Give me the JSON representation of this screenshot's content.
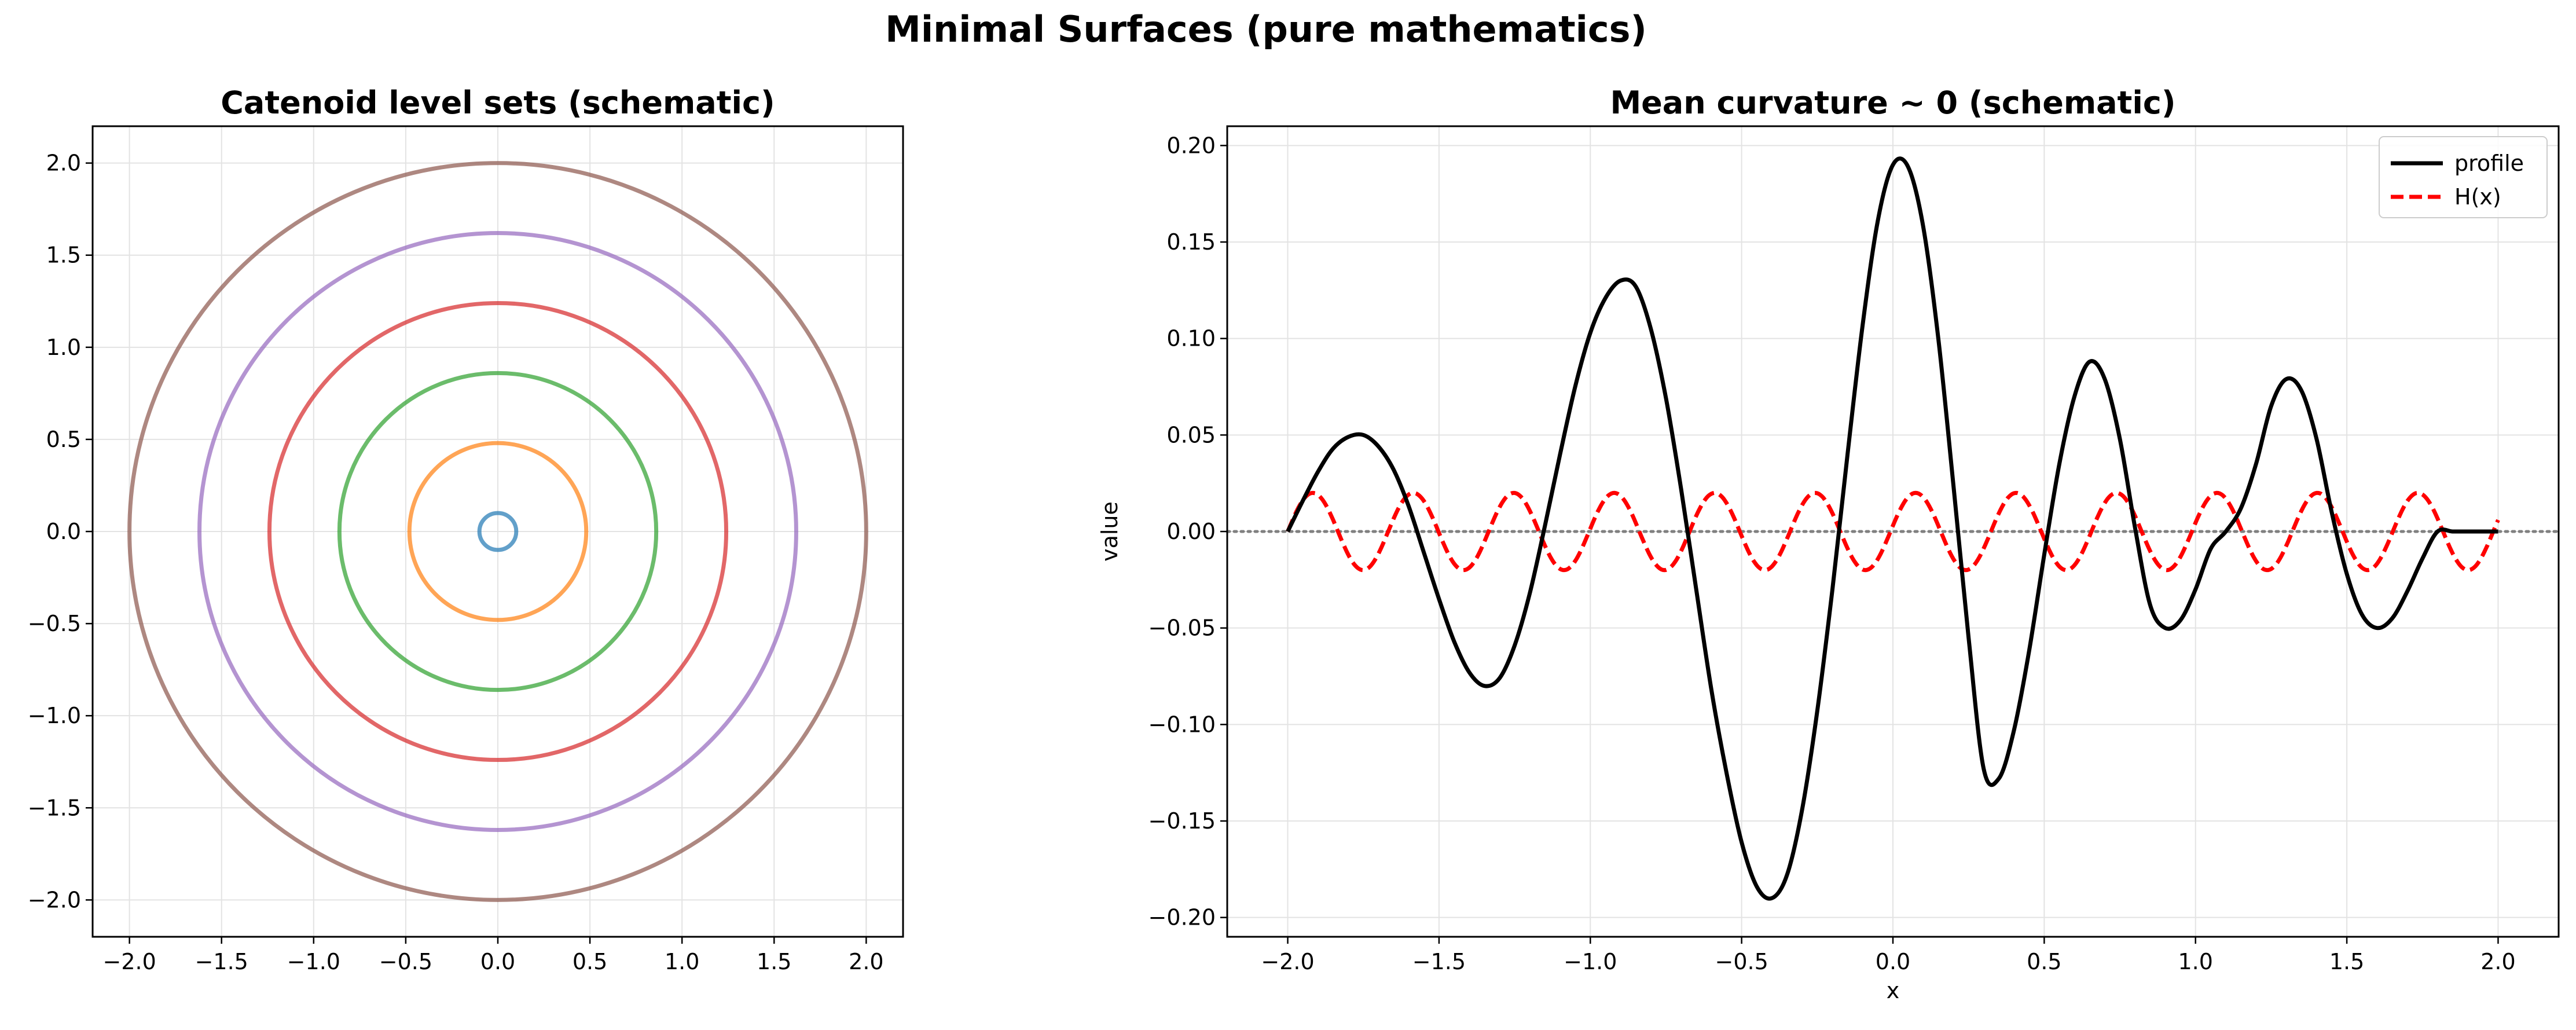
{
  "figure": {
    "title": "Minimal Surfaces (pure mathematics)"
  },
  "chart_data": [
    {
      "type": "line",
      "title": "Catenoid level sets (schematic)",
      "xlabel": "",
      "ylabel": "",
      "xlim": [
        -2.2,
        2.2
      ],
      "ylim": [
        -2.2,
        2.2
      ],
      "xticks": [
        "−2.0",
        "−1.5",
        "−1.0",
        "−0.5",
        "0.0",
        "0.5",
        "1.0",
        "1.5",
        "2.0"
      ],
      "yticks": [
        "−2.0",
        "−1.5",
        "−1.0",
        "−0.5",
        "0.0",
        "0.5",
        "1.0",
        "1.5",
        "2.0"
      ],
      "grid": true,
      "legend": "none",
      "circles": [
        {
          "center": [
            0,
            0
          ],
          "radius": 0.1,
          "color": "#1f77b4"
        },
        {
          "center": [
            0,
            0
          ],
          "radius": 0.48,
          "color": "#ff7f0e"
        },
        {
          "center": [
            0,
            0
          ],
          "radius": 0.86,
          "color": "#2ca02c"
        },
        {
          "center": [
            0,
            0
          ],
          "radius": 1.24,
          "color": "#d62728"
        },
        {
          "center": [
            0,
            0
          ],
          "radius": 1.62,
          "color": "#9467bd"
        },
        {
          "center": [
            0,
            0
          ],
          "radius": 2.0,
          "color": "#8c564b"
        }
      ]
    },
    {
      "type": "line",
      "title": "Mean curvature ~ 0 (schematic)",
      "xlabel": "x",
      "ylabel": "value",
      "xlim": [
        -2.2,
        2.2
      ],
      "ylim": [
        -0.21,
        0.21
      ],
      "xticks": [
        "−2.0",
        "−1.5",
        "−1.0",
        "−0.5",
        "0.0",
        "0.5",
        "1.0",
        "1.5",
        "2.0"
      ],
      "yticks": [
        "−0.20",
        "−0.15",
        "−0.10",
        "−0.05",
        "0.00",
        "0.05",
        "0.10",
        "0.15",
        "0.20"
      ],
      "grid": true,
      "legend": "top-right",
      "series": [
        {
          "name": "profile",
          "color": "#000000",
          "style": "solid",
          "x": [
            -2.0,
            -1.95,
            -1.9,
            -1.85,
            -1.8,
            -1.75,
            -1.7,
            -1.65,
            -1.6,
            -1.55,
            -1.5,
            -1.45,
            -1.4,
            -1.35,
            -1.3,
            -1.25,
            -1.2,
            -1.15,
            -1.1,
            -1.05,
            -1.0,
            -0.95,
            -0.9,
            -0.85,
            -0.8,
            -0.75,
            -0.7,
            -0.65,
            -0.6,
            -0.55,
            -0.5,
            -0.45,
            -0.4,
            -0.35,
            -0.3,
            -0.25,
            -0.2,
            -0.15,
            -0.1,
            -0.05,
            0.0,
            0.05,
            0.1,
            0.15,
            0.2,
            0.25,
            0.3,
            0.35,
            0.4,
            0.45,
            0.5,
            0.55,
            0.6,
            0.65,
            0.7,
            0.75,
            0.8,
            0.85,
            0.9,
            0.95,
            1.0,
            1.05,
            1.1,
            1.15,
            1.2,
            1.25,
            1.3,
            1.35,
            1.4,
            1.45,
            1.5,
            1.55,
            1.6,
            1.65,
            1.7,
            1.75,
            1.8,
            1.85,
            1.9,
            1.95,
            2.0
          ],
          "y": [
            0.0,
            0.016,
            0.031,
            0.043,
            0.049,
            0.05,
            0.044,
            0.032,
            0.013,
            -0.011,
            -0.035,
            -0.057,
            -0.073,
            -0.08,
            -0.076,
            -0.059,
            -0.032,
            0.003,
            0.04,
            0.075,
            0.103,
            0.121,
            0.13,
            0.127,
            0.105,
            0.069,
            0.022,
            -0.03,
            -0.082,
            -0.125,
            -0.161,
            -0.184,
            -0.19,
            -0.178,
            -0.144,
            -0.093,
            -0.03,
            0.04,
            0.107,
            0.161,
            0.19,
            0.189,
            0.158,
            0.1,
            0.024,
            -0.055,
            -0.123,
            -0.128,
            -0.103,
            -0.062,
            -0.012,
            0.035,
            0.07,
            0.088,
            0.079,
            0.048,
            0.002,
            -0.038,
            -0.05,
            -0.046,
            -0.03,
            -0.009,
            0.0,
            0.012,
            0.035,
            0.065,
            0.079,
            0.073,
            0.048,
            0.01,
            -0.022,
            -0.043,
            -0.05,
            -0.045,
            -0.031,
            -0.014,
            0.0,
            0.0,
            0.0,
            0.0,
            0.0
          ]
        },
        {
          "name": "H(x)",
          "color": "#ff0000",
          "style": "dashed",
          "amplitude": 0.02,
          "zero_crossing_spacing": 0.166,
          "x_range": [
            -2.0,
            2.0
          ]
        }
      ],
      "reference_line": {
        "y": 0.0,
        "color": "#808080",
        "style": "dotted"
      }
    }
  ]
}
